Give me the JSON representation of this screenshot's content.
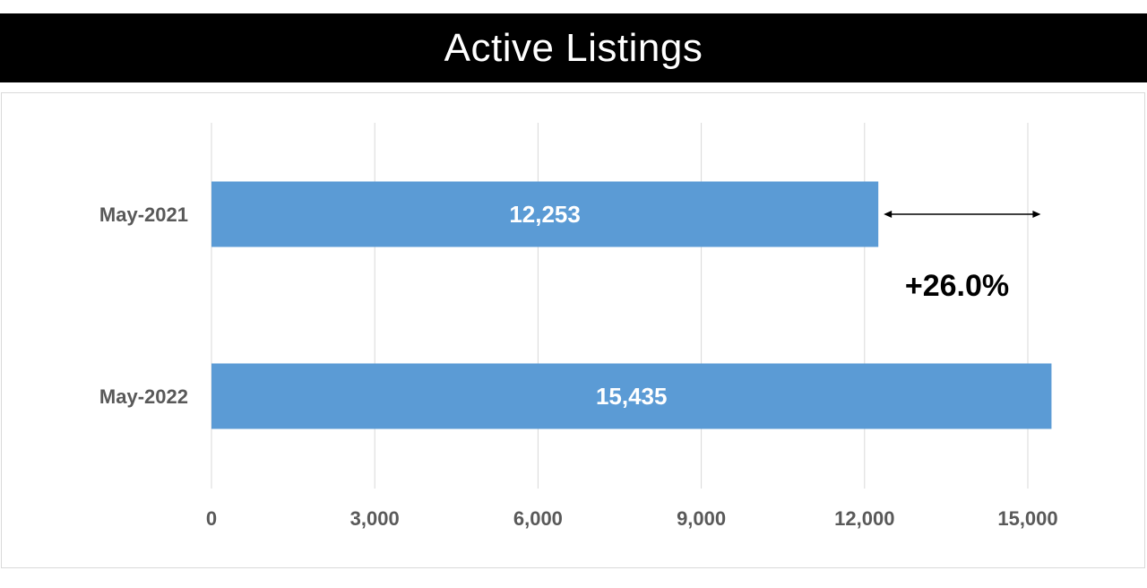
{
  "title": "Active Listings",
  "colors": {
    "banner_background": "#000000",
    "banner_text": "#ffffff",
    "bar": "#5b9bd5",
    "gridline": "#d9d9d9",
    "axis_text": "#595959",
    "annotation": "#000000"
  },
  "annotation": {
    "change_label": "+26.0%",
    "arrow": "double-headed"
  },
  "chart_data": {
    "type": "bar",
    "orientation": "horizontal",
    "categories": [
      "May-2021",
      "May-2022"
    ],
    "values": [
      12253,
      15435
    ],
    "data_labels": [
      "12,253",
      "15,435"
    ],
    "xlim": [
      0,
      15000
    ],
    "x_ticks": [
      0,
      3000,
      6000,
      9000,
      12000,
      15000
    ],
    "x_tick_labels": [
      "0",
      "3,000",
      "6,000",
      "9,000",
      "12,000",
      "15,000"
    ],
    "grid": true,
    "legend": "none"
  }
}
